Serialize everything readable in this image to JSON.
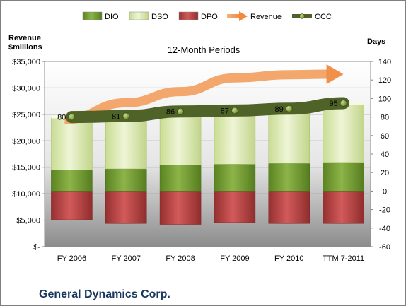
{
  "chart_data": {
    "type": "bar",
    "title": "12-Month Periods",
    "company": "General Dynamics Corp.",
    "left_axis": {
      "title_line1": "Revenue",
      "title_line2": "$millions",
      "range": [
        0,
        35000
      ],
      "ticks": [
        0,
        5000,
        10000,
        15000,
        20000,
        25000,
        30000,
        35000
      ],
      "tick_labels": [
        "$-",
        "$5,000",
        "$10,000",
        "$15,000",
        "$20,000",
        "$25,000",
        "$30,000",
        "$35,000"
      ]
    },
    "right_axis": {
      "title": "Days",
      "range": [
        -60,
        140
      ],
      "ticks": [
        -60,
        -40,
        -20,
        0,
        20,
        40,
        60,
        80,
        100,
        120,
        140
      ]
    },
    "categories": [
      "FY 2006",
      "FY 2007",
      "FY 2008",
      "FY 2009",
      "FY 2010",
      "TTM 7-2011"
    ],
    "series": [
      {
        "name": "DIO",
        "axis": "days",
        "kind": "stacked-bar",
        "color": "#6e9a2c",
        "values": [
          23,
          24,
          28,
          29,
          30,
          31
        ]
      },
      {
        "name": "DSO",
        "axis": "days",
        "kind": "stacked-bar",
        "color": "#d6e7a8",
        "values": [
          57,
          57,
          58,
          58,
          59,
          64
        ]
      },
      {
        "name": "DPO",
        "axis": "days",
        "kind": "bar",
        "color": "#b43c3c",
        "values": [
          -31,
          -35,
          -36,
          -34,
          -35,
          -35
        ]
      },
      {
        "name": "Revenue",
        "axis": "revenue",
        "kind": "arrow",
        "color": "#f2a060",
        "values": [
          24000,
          27200,
          29300,
          31900,
          32500,
          32600
        ]
      },
      {
        "name": "CCC",
        "axis": "days",
        "kind": "line",
        "color": "#4f6228",
        "values": [
          80,
          81,
          86,
          87,
          89,
          95
        ]
      }
    ],
    "data_labels": [
      "80",
      "81",
      "86",
      "87",
      "89",
      "95"
    ],
    "legend_position": "top",
    "grid": true
  }
}
